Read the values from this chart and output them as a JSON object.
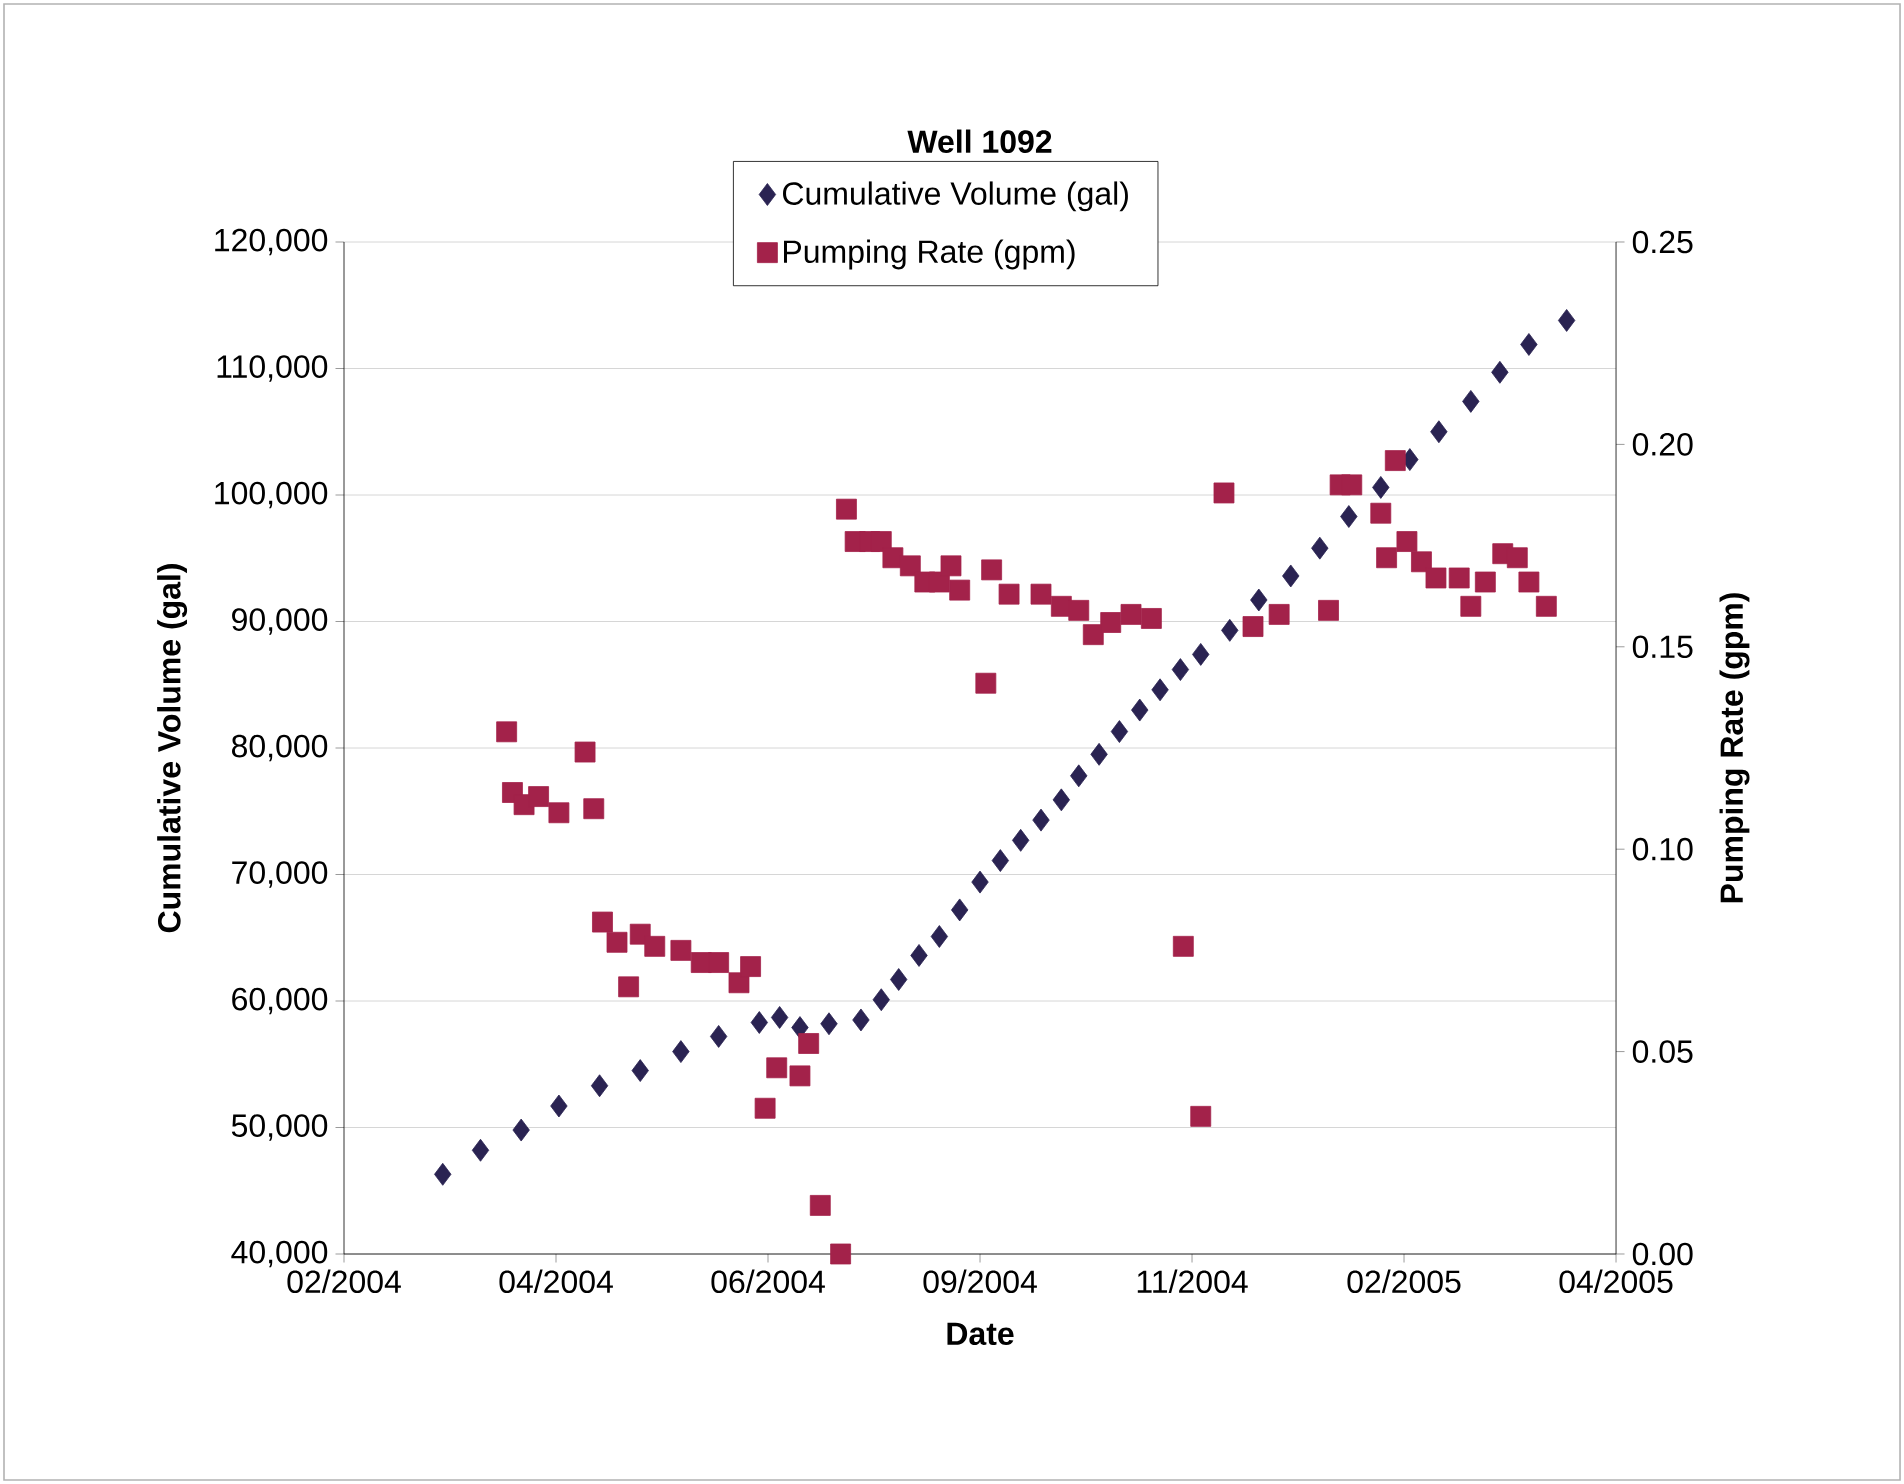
{
  "chart_data": {
    "type": "scatter",
    "title": "Well 1092",
    "xlabel": "Date",
    "ylabel": "Cumulative Volume (gal)",
    "y2label": "Pumping Rate (gpm)",
    "grid": "y",
    "legend": "top",
    "xlim": [
      "2004-02-05",
      "2005-04-18"
    ],
    "xticks": [
      {
        "value": "2004-02-05",
        "label": "02/2004"
      },
      {
        "value": "2004-04-18",
        "label": "04/2004"
      },
      {
        "value": "2004-06-30",
        "label": "06/2004"
      },
      {
        "value": "2004-09-11",
        "label": "09/2004"
      },
      {
        "value": "2004-11-23",
        "label": "11/2004"
      },
      {
        "value": "2005-02-04",
        "label": "02/2005"
      },
      {
        "value": "2005-04-18",
        "label": "04/2005"
      }
    ],
    "ylim": [
      40000,
      120000
    ],
    "yticks": [
      {
        "value": 40000,
        "label": "40,000"
      },
      {
        "value": 50000,
        "label": "50,000"
      },
      {
        "value": 60000,
        "label": "60,000"
      },
      {
        "value": 70000,
        "label": "70,000"
      },
      {
        "value": 80000,
        "label": "80,000"
      },
      {
        "value": 90000,
        "label": "90,000"
      },
      {
        "value": 100000,
        "label": "100,000"
      },
      {
        "value": 110000,
        "label": "110,000"
      },
      {
        "value": 120000,
        "label": "120,000"
      }
    ],
    "y2lim": [
      0,
      0.25
    ],
    "y2ticks": [
      {
        "value": 0,
        "label": "0.00"
      },
      {
        "value": 0.05,
        "label": "0.05"
      },
      {
        "value": 0.1,
        "label": "0.10"
      },
      {
        "value": 0.15,
        "label": "0.15"
      },
      {
        "value": 0.2,
        "label": "0.20"
      },
      {
        "value": 0.25,
        "label": "0.25"
      }
    ],
    "series": [
      {
        "name": "Cumulative Volume (gal)",
        "color": "#2a2352",
        "marker": "diamond",
        "x": [
          "2004-03-10",
          "2004-03-23",
          "2004-04-06",
          "2004-04-19",
          "2004-05-03",
          "2004-05-17",
          "2004-05-31",
          "2004-06-13",
          "2004-06-27",
          "2004-07-04",
          "2004-07-11",
          "2004-07-21",
          "2004-08-01",
          "2004-08-08",
          "2004-08-14",
          "2004-08-21",
          "2004-08-28",
          "2004-09-04",
          "2004-09-11",
          "2004-09-18",
          "2004-09-25",
          "2004-10-02",
          "2004-10-09",
          "2004-10-15",
          "2004-10-22",
          "2004-10-29",
          "2004-11-05",
          "2004-11-12",
          "2004-11-19",
          "2004-11-26",
          "2004-12-06",
          "2004-12-16",
          "2004-12-27",
          "2005-01-06",
          "2005-01-16",
          "2005-01-27",
          "2005-02-06",
          "2005-02-16",
          "2005-02-27",
          "2005-03-09",
          "2005-03-19",
          "2005-04-01"
        ],
        "values": [
          46300,
          48200,
          49800,
          51700,
          53300,
          54500,
          56000,
          57200,
          58300,
          58700,
          57900,
          58200,
          58500,
          60100,
          61700,
          63600,
          65100,
          67200,
          69400,
          71100,
          72700,
          74300,
          75900,
          77800,
          79500,
          81300,
          83000,
          84600,
          86200,
          87400,
          89300,
          91700,
          93600,
          95800,
          98300,
          100600,
          102800,
          105000,
          107400,
          109700,
          111900,
          113800
        ]
      },
      {
        "name": "Pumping Rate (gpm)",
        "color": "#a3224a",
        "marker": "square",
        "axis": "y2",
        "x": [
          "2004-04-01",
          "2004-04-03",
          "2004-04-07",
          "2004-04-12",
          "2004-04-19",
          "2004-04-28",
          "2004-05-01",
          "2004-05-04",
          "2004-05-09",
          "2004-05-13",
          "2004-05-17",
          "2004-05-22",
          "2004-05-31",
          "2004-06-07",
          "2004-06-13",
          "2004-06-20",
          "2004-06-24",
          "2004-06-29",
          "2004-07-03",
          "2004-07-11",
          "2004-07-14",
          "2004-07-18",
          "2004-07-25",
          "2004-07-27",
          "2004-07-30",
          "2004-08-04",
          "2004-08-08",
          "2004-08-12",
          "2004-08-18",
          "2004-08-23",
          "2004-08-28",
          "2004-09-01",
          "2004-09-04",
          "2004-09-13",
          "2004-09-15",
          "2004-09-21",
          "2004-10-02",
          "2004-10-09",
          "2004-10-15",
          "2004-10-20",
          "2004-10-26",
          "2004-11-02",
          "2004-11-09",
          "2004-11-20",
          "2004-11-26",
          "2004-12-04",
          "2004-12-14",
          "2004-12-23",
          "2005-01-09",
          "2005-01-13",
          "2005-01-17",
          "2005-01-27",
          "2005-01-29",
          "2005-02-01",
          "2005-02-05",
          "2005-02-10",
          "2005-02-15",
          "2005-02-23",
          "2005-02-27",
          "2005-03-04",
          "2005-03-10",
          "2005-03-15",
          "2005-03-19",
          "2005-03-25"
        ],
        "values": [
          0.129,
          0.114,
          0.111,
          0.113,
          0.109,
          0.124,
          0.11,
          0.082,
          0.077,
          0.066,
          0.079,
          0.076,
          0.075,
          0.072,
          0.072,
          0.067,
          0.071,
          0.036,
          0.046,
          0.044,
          0.052,
          0.012,
          0.0,
          0.184,
          0.176,
          0.176,
          0.176,
          0.172,
          0.17,
          0.166,
          0.166,
          0.17,
          0.164,
          0.141,
          0.169,
          0.163,
          0.163,
          0.16,
          0.159,
          0.153,
          0.156,
          0.158,
          0.157,
          0.076,
          0.034,
          0.188,
          0.155,
          0.158,
          0.159,
          0.19,
          0.19,
          0.183,
          0.172,
          0.196,
          0.176,
          0.171,
          0.167,
          0.167,
          0.16,
          0.166,
          0.173,
          0.172,
          0.166,
          0.16
        ]
      }
    ]
  }
}
